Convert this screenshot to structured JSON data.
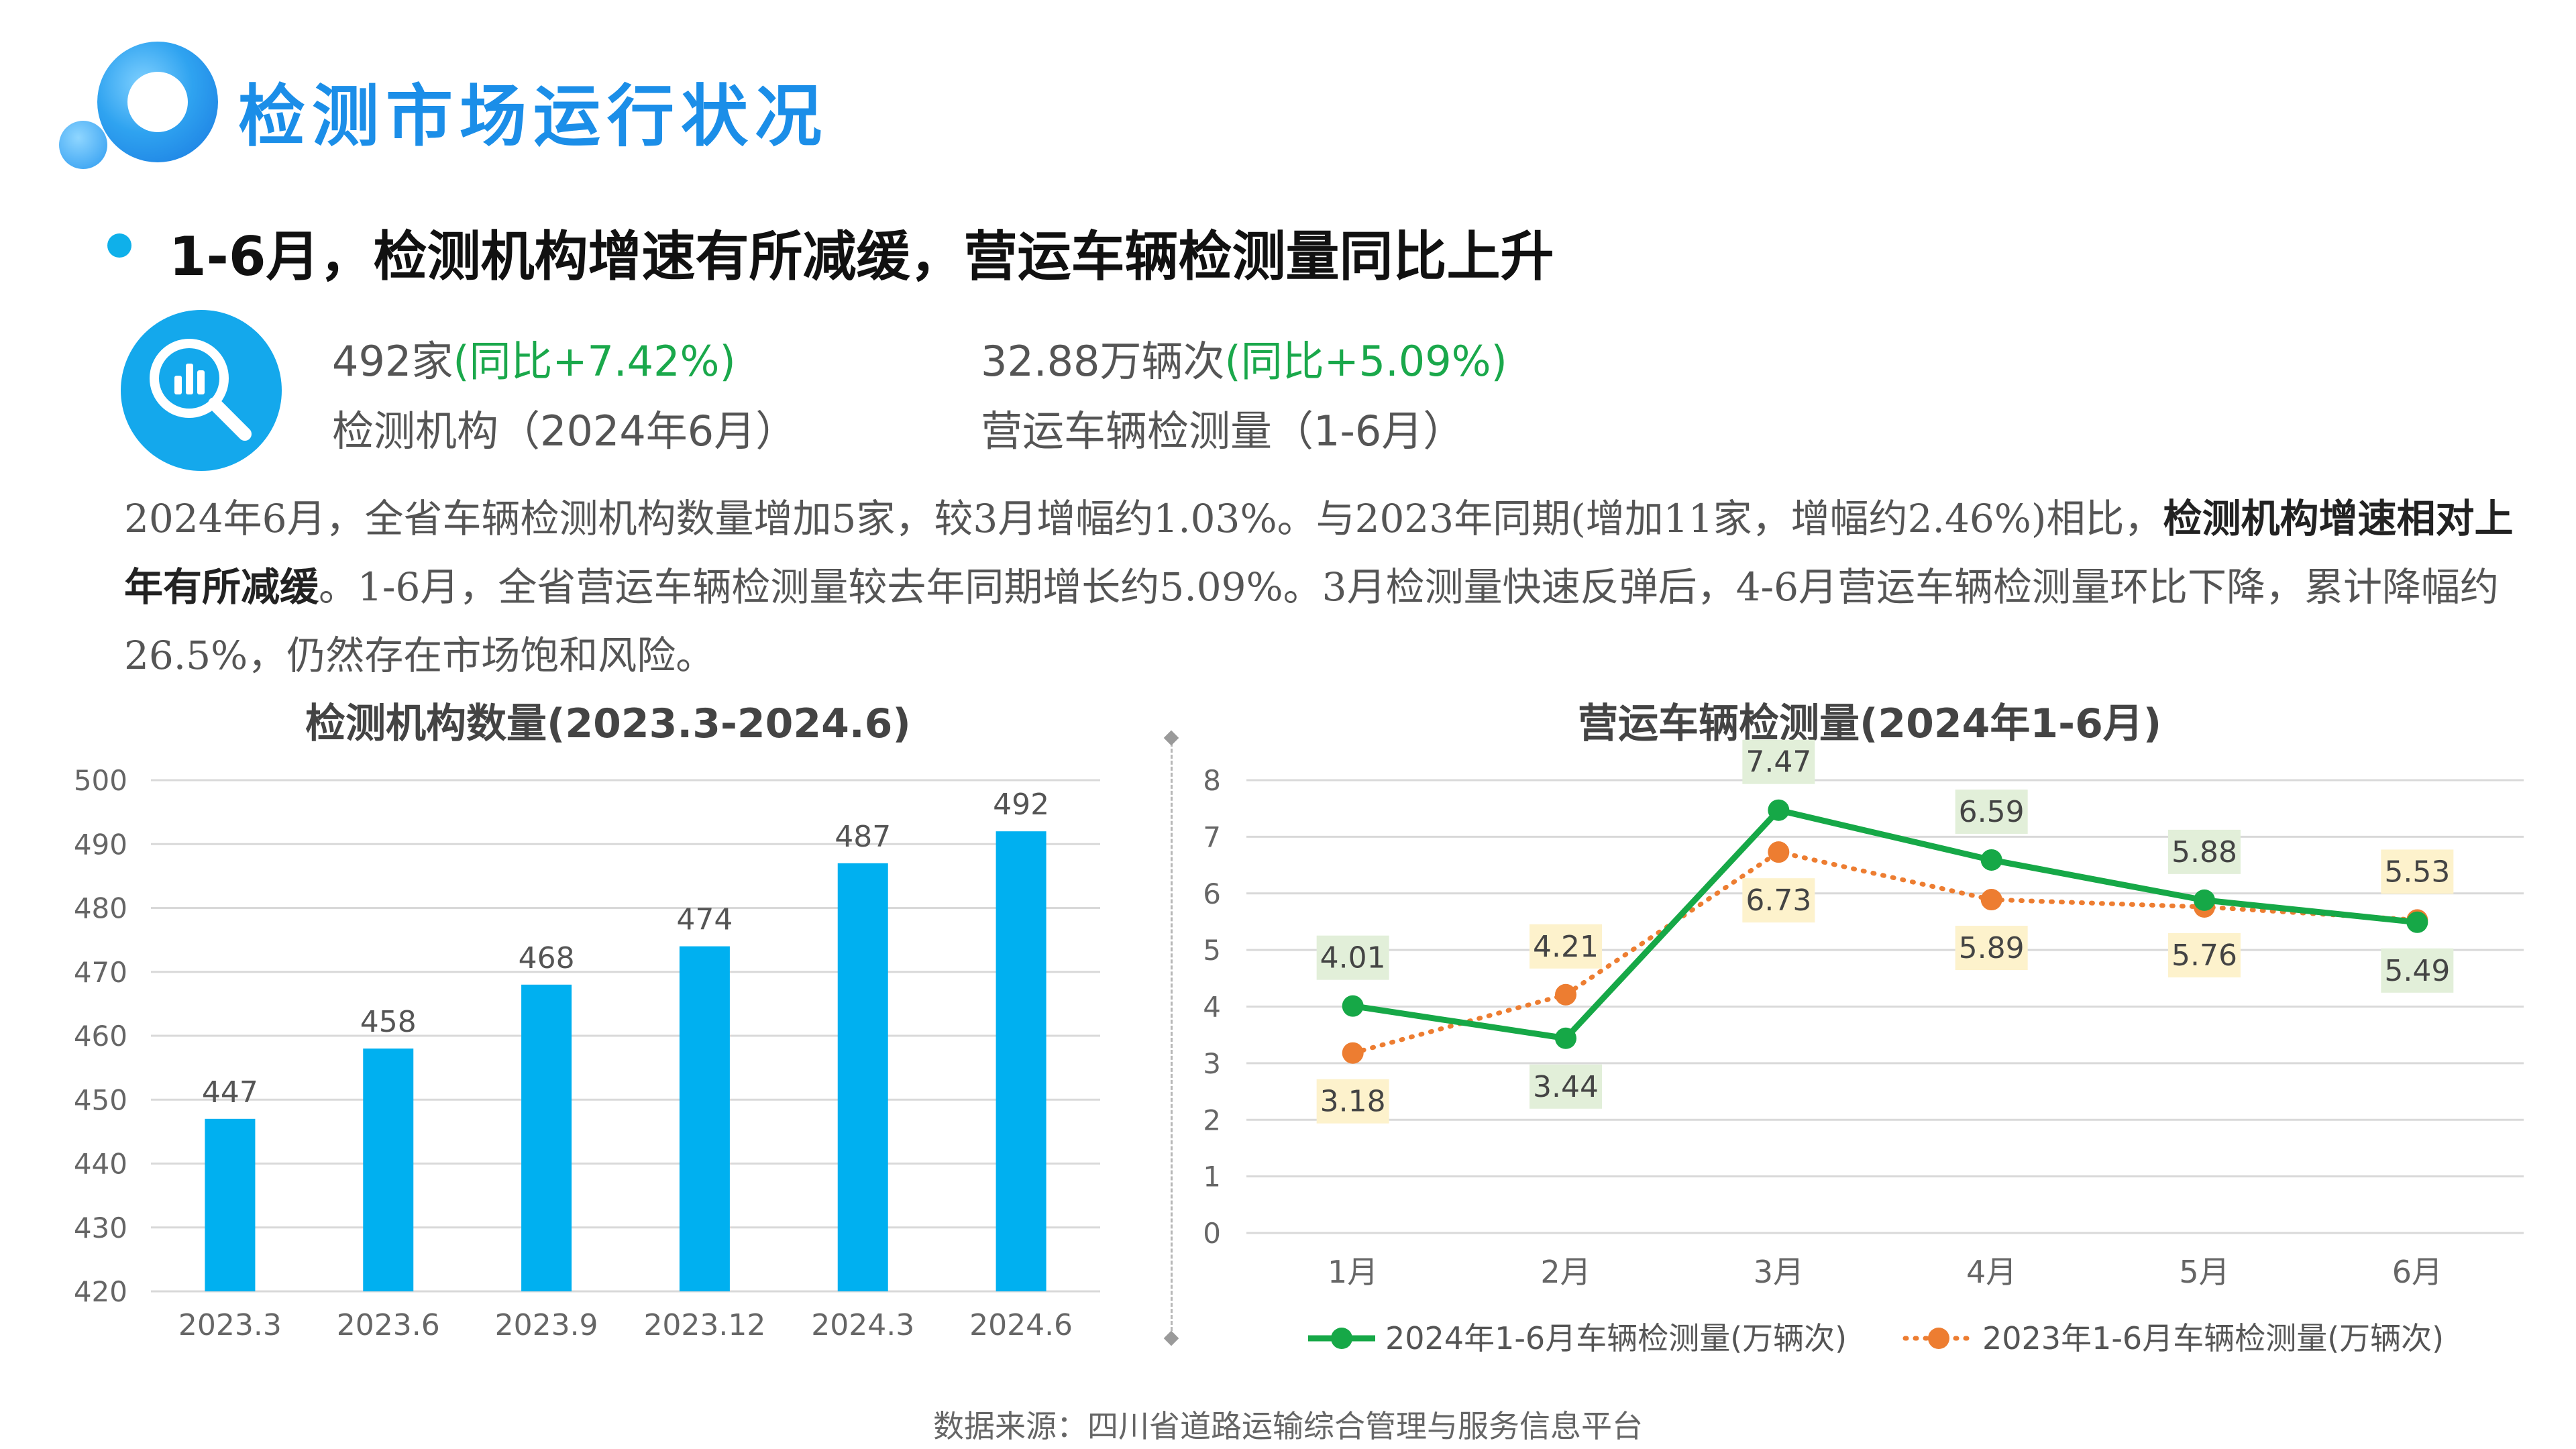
{
  "header": {
    "title": "检测市场运行状况",
    "subtitle": "1-6月，检测机构增速有所减缓，营运车辆检测量同比上升"
  },
  "kpis": [
    {
      "value": "492家",
      "change": "(同比+7.42%)",
      "label": "检测机构（2024年6月）"
    },
    {
      "value": "32.88万辆次",
      "change": "(同比+5.09%)",
      "label": "营运车辆检测量（1-6月）"
    }
  ],
  "paragraph": {
    "p1": "2024年6月，全省车辆检测机构数量增加5家，较3月增幅约1.03%。与2023年同期(增加11家，增幅约2.46%)相比，",
    "b1": "检测机构增速相对上年有所减缓",
    "p2": "。1-6月，全省营运车辆检测量较去年同期增长约5.09%。3月检测量快速反弹后，4-6月营运车辆检测量环比下降，累计降幅约26.5%，仍然存在市场饱和风险。"
  },
  "chart_data": [
    {
      "type": "bar",
      "title": "检测机构数量(2023.3-2024.6)",
      "categories": [
        "2023.3",
        "2023.6",
        "2023.9",
        "2023.12",
        "2024.3",
        "2024.6"
      ],
      "values": [
        447,
        458,
        468,
        474,
        487,
        492
      ],
      "ylim": [
        420,
        500
      ],
      "yticks": [
        420,
        430,
        440,
        450,
        460,
        470,
        480,
        490,
        500
      ],
      "grid": true,
      "color": "#00b0f0"
    },
    {
      "type": "line",
      "title": "营运车辆检测量(2024年1-6月)",
      "categories": [
        "1月",
        "2月",
        "3月",
        "4月",
        "5月",
        "6月"
      ],
      "ylim": [
        0,
        8
      ],
      "yticks": [
        0,
        1,
        2,
        3,
        4,
        5,
        6,
        7,
        8
      ],
      "grid": true,
      "legend_position": "bottom",
      "series": [
        {
          "name": "2024年1-6月车辆检测量(万辆次)",
          "values": [
            4.01,
            3.44,
            7.47,
            6.59,
            5.88,
            5.49
          ],
          "color": "#16a847",
          "style": "solid",
          "label_bg": "#e2efd9"
        },
        {
          "name": "2023年1-6月车辆检测量(万辆次)",
          "values": [
            3.18,
            4.21,
            6.73,
            5.89,
            5.76,
            5.53
          ],
          "color": "#ed7d31",
          "style": "dotted",
          "label_bg": "#fdf2cc"
        }
      ]
    }
  ],
  "footer": {
    "source": "数据来源：四川省道路运输综合管理与服务信息平台"
  }
}
